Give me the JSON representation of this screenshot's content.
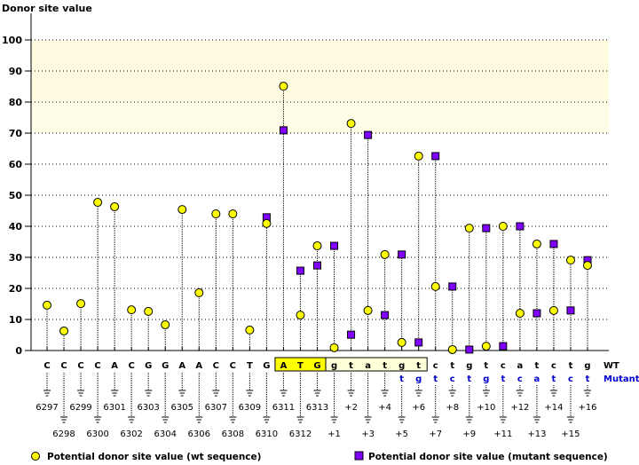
{
  "chart_data": {
    "type": "scatter",
    "title": "",
    "ylabel": "Donor site value",
    "ylim": [
      0,
      100
    ],
    "yticks": [
      0,
      10,
      20,
      30,
      40,
      50,
      60,
      70,
      80,
      90,
      100
    ],
    "grid": true,
    "highlight_band": [
      70,
      100
    ],
    "wt_bases": [
      "C",
      "C",
      "C",
      "C",
      "A",
      "C",
      "G",
      "G",
      "A",
      "A",
      "C",
      "C",
      "T",
      "G",
      "A",
      "T",
      "G",
      "g",
      "t",
      "a",
      "t",
      "g",
      "t",
      "c",
      "t",
      "g",
      "t",
      "c",
      "a",
      "t",
      "c",
      "t",
      "g"
    ],
    "mutant_bases": [
      "",
      "",
      "",
      "",
      "",
      "",
      "",
      "",
      "",
      "",
      "",
      "",
      "",
      "",
      "",
      "",
      "",
      "",
      "",
      "",
      "",
      "t",
      "g",
      "t",
      "c",
      "t",
      "g",
      "t",
      "c",
      "a",
      "t",
      "c",
      "t"
    ],
    "boxed_start": [
      15,
      17
    ],
    "boxed_intron": [
      18,
      23
    ],
    "positions": [
      "6297",
      "6298",
      "6299",
      "6300",
      "6301",
      "6302",
      "6303",
      "6304",
      "6305",
      "6306",
      "6307",
      "6308",
      "6309",
      "6310",
      "6311",
      "6312",
      "6313",
      "+1",
      "+2",
      "+3",
      "+4",
      "+5",
      "+6",
      "+7",
      "+8",
      "+9",
      "+10",
      "+11",
      "+12",
      "+13",
      "+14",
      "+15",
      "+16"
    ],
    "row_label_wt": "WT",
    "row_label_mutant": "Mutant",
    "series": [
      {
        "name": "Potential donor site value (wt sequence)",
        "marker": "circle",
        "color": "#ffff00",
        "values": [
          14.6,
          6.3,
          15.1,
          47.7,
          46.3,
          13.1,
          12.6,
          8.3,
          45.4,
          18.6,
          44,
          44,
          6.6,
          40.9,
          85.1,
          11.4,
          33.7,
          0.9,
          73.1,
          12.9,
          30.9,
          2.6,
          62.6,
          20.6,
          0.3,
          39.4,
          1.4,
          40,
          12,
          34.3,
          12.9,
          29.1,
          27.4
        ]
      },
      {
        "name": "Potential donor site value (mutant sequence)",
        "marker": "square",
        "color": "#8000ff",
        "values": [
          null,
          null,
          null,
          null,
          null,
          null,
          null,
          null,
          null,
          null,
          null,
          null,
          null,
          42.9,
          70.9,
          25.7,
          27.4,
          33.7,
          5.1,
          69.4,
          11.4,
          30.9,
          2.6,
          62.6,
          20.6,
          0.3,
          39.4,
          1.4,
          40,
          12,
          34.3,
          12.9,
          29.1
        ]
      }
    ]
  }
}
